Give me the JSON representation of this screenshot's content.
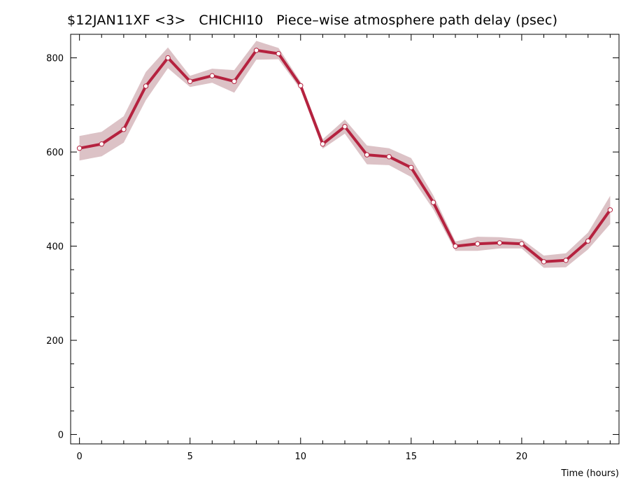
{
  "chart_data": {
    "type": "line",
    "title": "$12JAN11XF <3>   CHICHI10   Piece–wise atmosphere path delay (psec)",
    "xlabel": "Time (hours)",
    "ylabel": "",
    "xlim": [
      -0.4,
      24.4
    ],
    "ylim": [
      -20,
      850
    ],
    "xticks": [
      0,
      5,
      10,
      15,
      20
    ],
    "yticks": [
      0,
      200,
      400,
      600,
      800
    ],
    "grid": false,
    "series": [
      {
        "color": "#b5223f",
        "band_color": "#dcc2c6",
        "x": [
          0,
          1,
          2,
          3,
          4,
          5,
          6,
          7,
          8,
          9,
          10,
          11,
          12,
          13,
          14,
          15,
          16,
          17,
          18,
          19,
          20,
          21,
          22,
          23,
          24
        ],
        "y": [
          608,
          617,
          648,
          740,
          800,
          750,
          762,
          750,
          816,
          809,
          741,
          617,
          654,
          594,
          590,
          567,
          493,
          400,
          405,
          407,
          405,
          367,
          370,
          411,
          477
        ],
        "band": [
          26,
          26,
          28,
          30,
          22,
          12,
          15,
          24,
          20,
          12,
          8,
          10,
          15,
          20,
          18,
          20,
          15,
          10,
          15,
          12,
          10,
          13,
          15,
          18,
          30
        ]
      }
    ]
  }
}
